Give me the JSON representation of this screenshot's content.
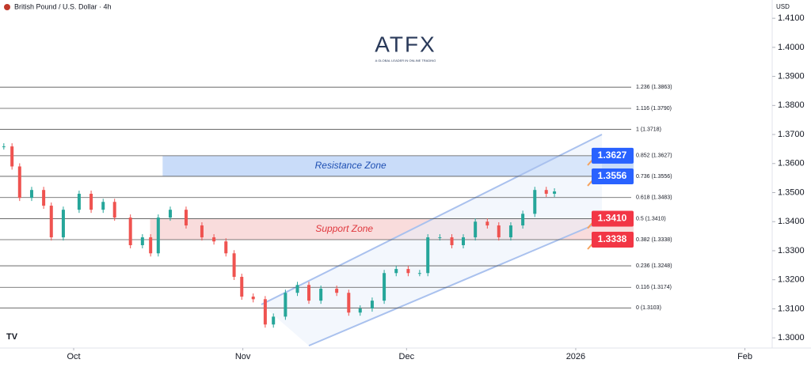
{
  "chart_data": {
    "type": "candlestick",
    "title": "British Pound / U.S. Dollar · 4h",
    "currency": "USD",
    "logo": "ATFX",
    "logo_tagline": "A GLOBAL LEADER IN ONLINE TRADING",
    "xlim": [
      -13.5,
      128
    ],
    "xticks": [
      {
        "value": 0,
        "label": "Oct"
      },
      {
        "value": 31,
        "label": "Nov"
      },
      {
        "value": 61,
        "label": "Dec"
      },
      {
        "value": 92,
        "label": "2026"
      },
      {
        "value": 123,
        "label": "Feb"
      }
    ],
    "ylim": [
      1.2965,
      1.4163
    ],
    "yticks": [
      {
        "value": 1.41,
        "label": "1.4100"
      },
      {
        "value": 1.4,
        "label": "1.4000"
      },
      {
        "value": 1.39,
        "label": "1.3900"
      },
      {
        "value": 1.38,
        "label": "1.3800"
      },
      {
        "value": 1.37,
        "label": "1.3700"
      },
      {
        "value": 1.36,
        "label": "1.3600"
      },
      {
        "value": 1.35,
        "label": "1.3500"
      },
      {
        "value": 1.34,
        "label": "1.3400"
      },
      {
        "value": 1.33,
        "label": "1.3300"
      },
      {
        "value": 1.32,
        "label": "1.3200"
      },
      {
        "value": 1.31,
        "label": "1.3100"
      },
      {
        "value": 1.3,
        "label": "1.3000"
      }
    ],
    "up_color": "#26a69a",
    "down_color": "#ef5350",
    "series": [
      {
        "name": "GBP/USD",
        "x": [
          -12.8,
          -11.3,
          -9.9,
          -7.7,
          -5.5,
          -4.1,
          -1.9,
          1.0,
          3.2,
          5.4,
          7.5,
          10.4,
          12.6,
          14.1,
          15.5,
          17.7,
          20.6,
          23.5,
          25.7,
          27.9,
          29.4,
          30.8,
          32.9,
          35.1,
          36.6,
          38.8,
          41.0,
          43.1,
          45.3,
          48.2,
          50.4,
          52.5,
          54.7,
          56.9,
          59.1,
          61.3,
          63.4,
          64.9,
          67.1,
          69.3,
          71.4,
          73.6,
          75.8,
          77.9,
          80.1,
          82.3,
          84.5,
          86.6,
          88.1
        ],
        "values": [
          1.3659,
          1.359,
          1.3482,
          1.3509,
          1.3455,
          1.3346,
          1.3441,
          1.3496,
          1.3441,
          1.3468,
          1.3414,
          1.3319,
          1.3346,
          1.3291,
          1.3414,
          1.3441,
          1.3387,
          1.3346,
          1.3332,
          1.3291,
          1.321,
          1.3142,
          1.3133,
          1.3046,
          1.3073,
          1.3155,
          1.3182,
          1.3128,
          1.3169,
          1.3155,
          1.3087,
          1.3101,
          1.3128,
          1.3223,
          1.3237,
          1.3223,
          1.3223,
          1.3346,
          1.3346,
          1.3319,
          1.3346,
          1.34,
          1.3387,
          1.3346,
          1.3387,
          1.3427,
          1.3509,
          1.3496,
          1.3504
        ]
      }
    ],
    "fib_levels": [
      {
        "value": 1.3863,
        "label": "1.236 (1.3863)"
      },
      {
        "value": 1.379,
        "label": "1.116 (1.3790)"
      },
      {
        "value": 1.3718,
        "label": "1 (1.3718)"
      },
      {
        "value": 1.3627,
        "label": "0.852 (1.3627)"
      },
      {
        "value": 1.3556,
        "label": "0.736 (1.3556)"
      },
      {
        "value": 1.3483,
        "label": "0.618 (1.3483)"
      },
      {
        "value": 1.341,
        "label": "0.5 (1.3410)"
      },
      {
        "value": 1.3338,
        "label": "0.382 (1.3338)"
      },
      {
        "value": 1.3248,
        "label": "0.236 (1.3248)"
      },
      {
        "value": 1.3174,
        "label": "0.116 (1.3174)"
      },
      {
        "value": 1.3103,
        "label": "0 (1.3103)"
      }
    ],
    "zones": [
      {
        "label": "Resistance Zone",
        "range": [
          1.3556,
          1.3627
        ],
        "x": [
          16.3,
          102.6
        ],
        "color": "#bbd3f7",
        "text_color": "#1e4fb3"
      },
      {
        "label": "Support Zone",
        "range": [
          1.3338,
          1.341
        ],
        "x": [
          14.0,
          102.6
        ],
        "color": "#f8d3d3",
        "text_color": "#e0383e"
      }
    ],
    "price_tags": [
      {
        "value": 1.3627,
        "label": "1.3627",
        "color": "#2962ff"
      },
      {
        "value": 1.3556,
        "label": "1.3556",
        "color": "#2962ff"
      },
      {
        "value": 1.341,
        "label": "1.3410",
        "color": "#f23645"
      },
      {
        "value": 1.3338,
        "label": "1.3338",
        "color": "#f23645"
      }
    ]
  }
}
